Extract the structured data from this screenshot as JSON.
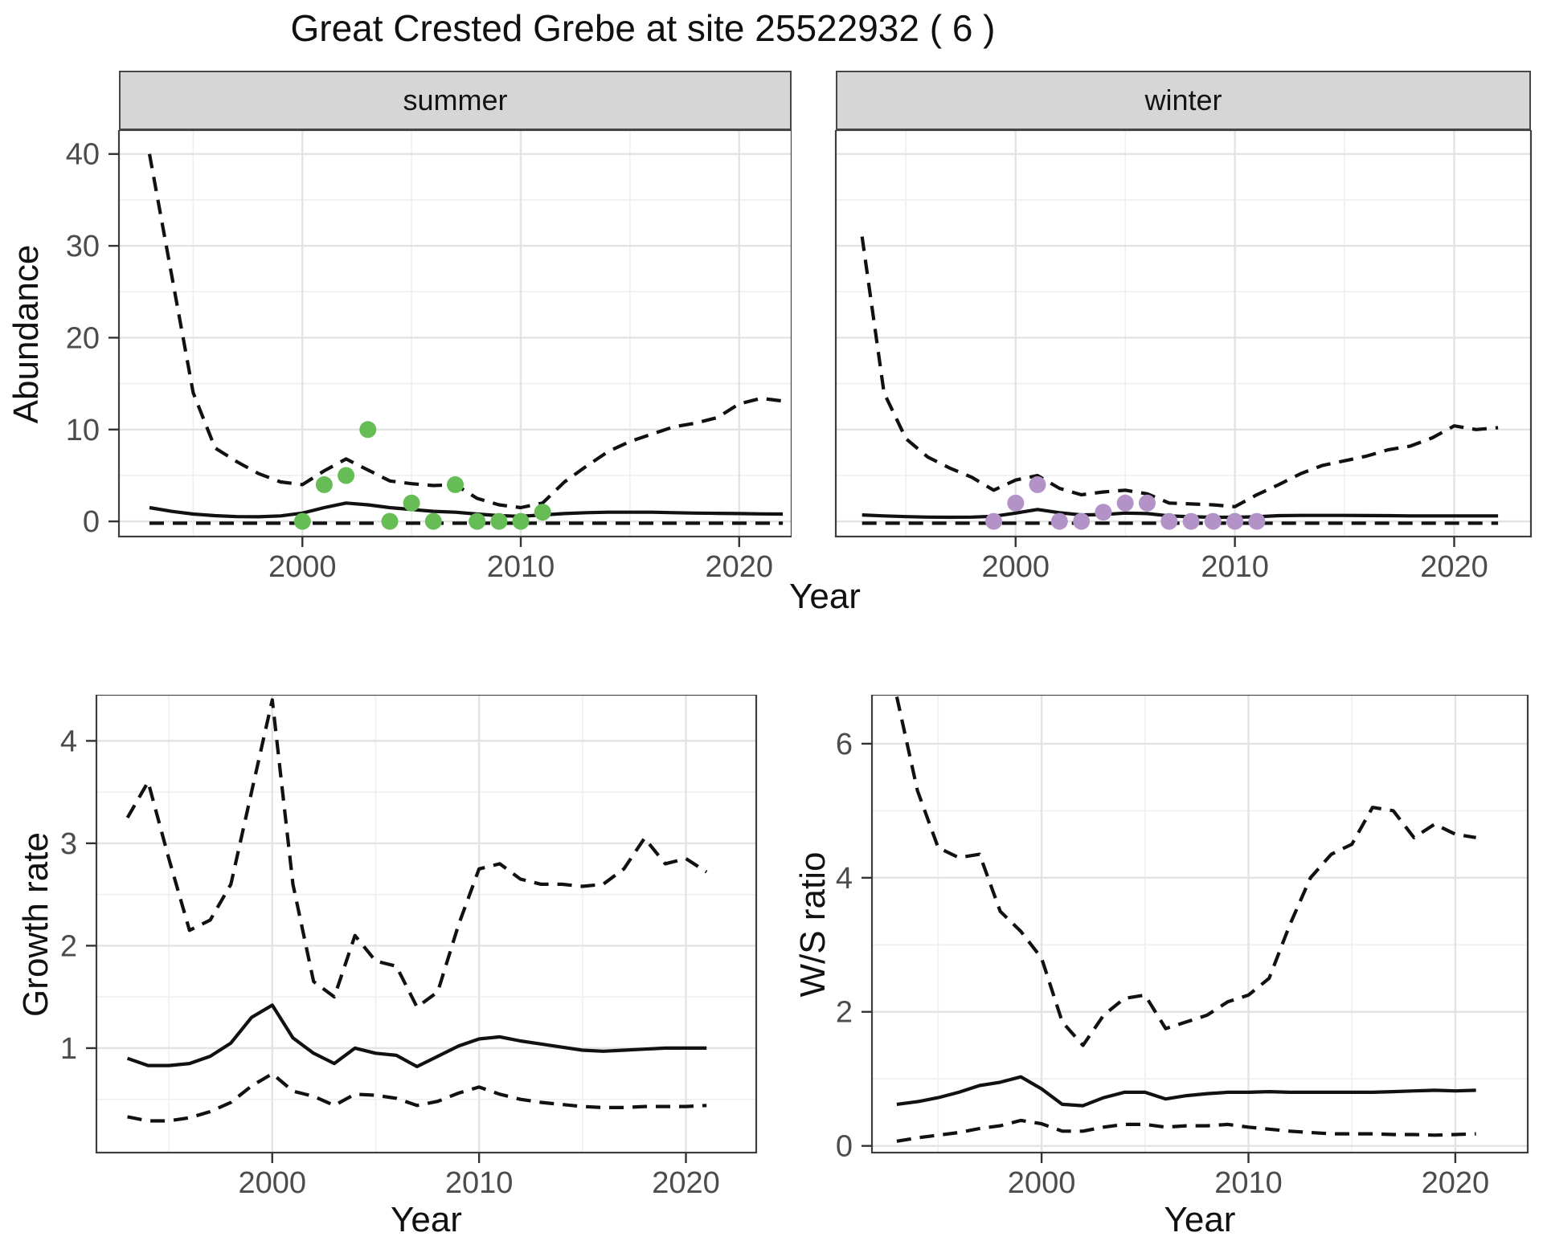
{
  "title": "Great Crested Grebe at site 25522932 ( 6 )",
  "line_color": "#111111",
  "grid_major_color": "#e3e3e3",
  "grid_minor_color": "#efefef",
  "panel_border_color": "#3e3e3e",
  "strip_fill_color": "#d6d6d6",
  "chart_data": [
    {
      "id": "abundance-summer",
      "type": "line+scatter",
      "facet_label": "summer",
      "ylabel": "Abundance",
      "xlabel": "Year",
      "xlim": [
        1991.6,
        2022.4
      ],
      "ylim": [
        -1.65,
        42.6
      ],
      "xticks": [
        2000,
        2010,
        2020
      ],
      "yticks": [
        0,
        10,
        20,
        30,
        40
      ],
      "xminor": [
        1995,
        2005,
        2015
      ],
      "yminor": [
        5,
        15,
        25,
        35
      ],
      "show_y_tick_labels": true,
      "grid": true,
      "legend": "none",
      "point_color": "#66bd55",
      "x": [
        1993,
        1994,
        1995,
        1996,
        1997,
        1998,
        1999,
        2000,
        2001,
        2002,
        2003,
        2004,
        2005,
        2006,
        2007,
        2008,
        2009,
        2010,
        2011,
        2012,
        2013,
        2014,
        2015,
        2016,
        2017,
        2018,
        2019,
        2020,
        2021,
        2022
      ],
      "series": [
        {
          "name": "upper-credible",
          "style": "dashed",
          "values": [
            40,
            27,
            14,
            8,
            6.5,
            5.2,
            4.3,
            4.0,
            5.5,
            6.8,
            5.6,
            4.4,
            4.1,
            3.9,
            4.0,
            2.5,
            1.8,
            1.5,
            2.0,
            4.3,
            6.0,
            7.6,
            8.7,
            9.5,
            10.3,
            10.7,
            11.3,
            12.8,
            13.4,
            13.1
          ]
        },
        {
          "name": "median",
          "style": "solid",
          "values": [
            1.5,
            1.1,
            0.8,
            0.62,
            0.52,
            0.5,
            0.6,
            0.9,
            1.5,
            2.0,
            1.8,
            1.5,
            1.3,
            1.1,
            1.0,
            0.8,
            0.62,
            0.55,
            0.7,
            0.85,
            0.95,
            1.0,
            1.0,
            1.0,
            0.95,
            0.9,
            0.88,
            0.85,
            0.82,
            0.8
          ]
        },
        {
          "name": "lower-credible",
          "style": "dashed",
          "values": [
            -0.2,
            -0.2,
            -0.2,
            -0.2,
            -0.2,
            -0.2,
            -0.2,
            -0.2,
            -0.2,
            -0.2,
            -0.2,
            -0.2,
            -0.2,
            -0.2,
            -0.2,
            -0.2,
            -0.2,
            -0.2,
            -0.2,
            -0.2,
            -0.2,
            -0.2,
            -0.2,
            -0.2,
            -0.2,
            -0.2,
            -0.2,
            -0.2,
            -0.2,
            -0.2
          ]
        }
      ],
      "points": {
        "x": [
          2000,
          2001,
          2002,
          2003,
          2004,
          2005,
          2006,
          2007,
          2008,
          2009,
          2010,
          2011
        ],
        "y": [
          0,
          4,
          5,
          10,
          0,
          2,
          0,
          4,
          0,
          0,
          0,
          1
        ]
      }
    },
    {
      "id": "abundance-winter",
      "type": "line+scatter",
      "facet_label": "winter",
      "ylabel": "Abundance",
      "xlabel": "Year",
      "xlim": [
        1991.8,
        2023.5
      ],
      "ylim": [
        -1.65,
        42.6
      ],
      "xticks": [
        2000,
        2010,
        2020
      ],
      "yticks": [
        0,
        10,
        20,
        30,
        40
      ],
      "xminor": [
        1995,
        2005,
        2015
      ],
      "yminor": [
        5,
        15,
        25,
        35
      ],
      "show_y_tick_labels": false,
      "grid": true,
      "legend": "none",
      "point_color": "#b392c7",
      "x": [
        1993,
        1994,
        1995,
        1996,
        1997,
        1998,
        1999,
        2000,
        2001,
        2002,
        2003,
        2004,
        2005,
        2006,
        2007,
        2008,
        2009,
        2010,
        2011,
        2012,
        2013,
        2014,
        2015,
        2016,
        2017,
        2018,
        2019,
        2020,
        2021,
        2022
      ],
      "series": [
        {
          "name": "upper-credible",
          "style": "dashed",
          "values": [
            31,
            14,
            9,
            7,
            5.8,
            4.8,
            3.4,
            4.5,
            5.0,
            3.6,
            2.9,
            3.2,
            3.4,
            3.0,
            2.0,
            1.9,
            1.8,
            1.6,
            2.9,
            4.0,
            5.2,
            6.1,
            6.6,
            7.1,
            7.8,
            8.2,
            9.1,
            10.4,
            10.0,
            10.2
          ]
        },
        {
          "name": "median",
          "style": "solid",
          "values": [
            0.7,
            0.6,
            0.52,
            0.47,
            0.45,
            0.47,
            0.55,
            0.9,
            1.3,
            0.95,
            0.7,
            0.75,
            0.9,
            0.85,
            0.6,
            0.5,
            0.45,
            0.45,
            0.5,
            0.62,
            0.65,
            0.65,
            0.65,
            0.63,
            0.62,
            0.6,
            0.6,
            0.6,
            0.6,
            0.6
          ]
        },
        {
          "name": "lower-credible",
          "style": "dashed",
          "values": [
            -0.2,
            -0.2,
            -0.2,
            -0.2,
            -0.2,
            -0.2,
            -0.2,
            -0.2,
            -0.2,
            -0.2,
            -0.2,
            -0.2,
            -0.2,
            -0.2,
            -0.2,
            -0.2,
            -0.2,
            -0.2,
            -0.2,
            -0.2,
            -0.2,
            -0.2,
            -0.2,
            -0.2,
            -0.2,
            -0.2,
            -0.2,
            -0.2,
            -0.2,
            -0.2
          ]
        }
      ],
      "points": {
        "x": [
          1999,
          2000,
          2001,
          2002,
          2003,
          2004,
          2005,
          2006,
          2007,
          2008,
          2009,
          2010,
          2011
        ],
        "y": [
          0,
          2,
          4,
          0,
          0,
          1,
          2,
          2,
          0,
          0,
          0,
          0,
          0
        ]
      }
    },
    {
      "id": "growth-rate",
      "type": "line",
      "facet_label": "",
      "ylabel": "Growth rate",
      "xlabel": "Year",
      "xlim": [
        1991.5,
        2023.4
      ],
      "ylim": [
        -0.02,
        4.45
      ],
      "xticks": [
        2000,
        2010,
        2020
      ],
      "yticks": [
        1,
        2,
        3,
        4
      ],
      "xminor": [
        1995,
        2005,
        2015
      ],
      "yminor": [
        0.5,
        1.5,
        2.5,
        3.5
      ],
      "show_y_tick_labels": true,
      "grid": true,
      "legend": "none",
      "x": [
        1993,
        1994,
        1995,
        1996,
        1997,
        1998,
        1999,
        2000,
        2001,
        2002,
        2003,
        2004,
        2005,
        2006,
        2007,
        2008,
        2009,
        2010,
        2011,
        2012,
        2013,
        2014,
        2015,
        2016,
        2017,
        2018,
        2019,
        2020,
        2021
      ],
      "series": [
        {
          "name": "upper-credible",
          "style": "dashed",
          "values": [
            3.25,
            3.6,
            2.85,
            2.15,
            2.25,
            2.6,
            3.5,
            4.4,
            2.6,
            1.65,
            1.5,
            2.1,
            1.85,
            1.8,
            1.4,
            1.55,
            2.2,
            2.75,
            2.8,
            2.65,
            2.6,
            2.6,
            2.58,
            2.6,
            2.75,
            3.05,
            2.8,
            2.85,
            2.72
          ]
        },
        {
          "name": "median",
          "style": "solid",
          "values": [
            0.9,
            0.83,
            0.83,
            0.85,
            0.92,
            1.05,
            1.3,
            1.42,
            1.1,
            0.95,
            0.85,
            1.0,
            0.95,
            0.93,
            0.82,
            0.92,
            1.02,
            1.09,
            1.11,
            1.07,
            1.04,
            1.01,
            0.98,
            0.97,
            0.98,
            0.99,
            1.0,
            1.0,
            1.0
          ]
        },
        {
          "name": "lower-credible",
          "style": "dashed",
          "values": [
            0.33,
            0.29,
            0.29,
            0.32,
            0.38,
            0.47,
            0.63,
            0.75,
            0.58,
            0.53,
            0.44,
            0.55,
            0.54,
            0.51,
            0.44,
            0.48,
            0.56,
            0.62,
            0.55,
            0.5,
            0.47,
            0.45,
            0.43,
            0.42,
            0.42,
            0.43,
            0.43,
            0.43,
            0.44
          ]
        }
      ]
    },
    {
      "id": "ws-ratio",
      "type": "line",
      "facet_label": "",
      "ylabel": "W/S ratio",
      "xlabel": "Year",
      "xlim": [
        1991.8,
        2023.5
      ],
      "ylim": [
        -0.1,
        6.73
      ],
      "xticks": [
        2000,
        2010,
        2020
      ],
      "yticks": [
        0,
        2,
        4,
        6
      ],
      "xminor": [
        1995,
        2005,
        2015
      ],
      "yminor": [
        1,
        3,
        5
      ],
      "show_y_tick_labels": true,
      "grid": true,
      "legend": "none",
      "x": [
        1993,
        1994,
        1995,
        1996,
        1997,
        1998,
        1999,
        2000,
        2001,
        2002,
        2003,
        2004,
        2005,
        2006,
        2007,
        2008,
        2009,
        2010,
        2011,
        2012,
        2013,
        2014,
        2015,
        2016,
        2017,
        2018,
        2019,
        2020,
        2021
      ],
      "series": [
        {
          "name": "upper-credible",
          "style": "dashed",
          "values": [
            6.7,
            5.3,
            4.45,
            4.3,
            4.35,
            3.5,
            3.2,
            2.8,
            1.85,
            1.5,
            1.95,
            2.2,
            2.25,
            1.75,
            1.85,
            1.95,
            2.15,
            2.25,
            2.5,
            3.3,
            4.0,
            4.35,
            4.5,
            5.05,
            5.0,
            4.6,
            4.8,
            4.65,
            4.6
          ]
        },
        {
          "name": "median",
          "style": "solid",
          "values": [
            0.62,
            0.66,
            0.72,
            0.8,
            0.9,
            0.95,
            1.03,
            0.85,
            0.62,
            0.6,
            0.72,
            0.8,
            0.8,
            0.7,
            0.75,
            0.78,
            0.8,
            0.8,
            0.81,
            0.8,
            0.8,
            0.8,
            0.8,
            0.8,
            0.81,
            0.82,
            0.83,
            0.82,
            0.83
          ]
        },
        {
          "name": "lower-credible",
          "style": "dashed",
          "values": [
            0.07,
            0.12,
            0.16,
            0.2,
            0.26,
            0.3,
            0.38,
            0.33,
            0.22,
            0.22,
            0.28,
            0.32,
            0.32,
            0.28,
            0.3,
            0.3,
            0.32,
            0.28,
            0.25,
            0.22,
            0.2,
            0.18,
            0.18,
            0.18,
            0.17,
            0.17,
            0.16,
            0.17,
            0.18
          ]
        }
      ]
    }
  ]
}
